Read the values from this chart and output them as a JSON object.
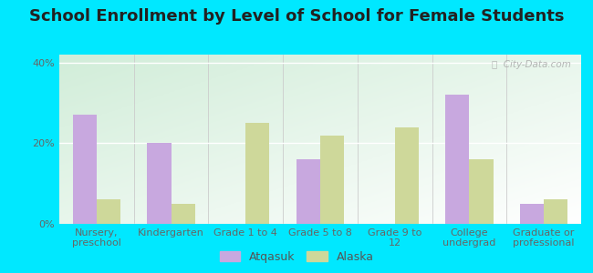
{
  "title": "School Enrollment by Level of School for Female Students",
  "categories": [
    "Nursery,\npreschool",
    "Kindergarten",
    "Grade 1 to 4",
    "Grade 5 to 8",
    "Grade 9 to\n12",
    "College\nundergrad",
    "Graduate or\nprofessional"
  ],
  "atqasuk": [
    27,
    20,
    0,
    16,
    0,
    32,
    5
  ],
  "alaska": [
    6,
    5,
    25,
    22,
    24,
    16,
    6
  ],
  "atqasuk_color": "#c8a8df",
  "alaska_color": "#ced89a",
  "background_outer": "#00e8ff",
  "background_inner_top": "#d0ecd8",
  "background_inner_bottom": "#eef8ee",
  "ylim": [
    0,
    42
  ],
  "yticks": [
    0,
    20,
    40
  ],
  "ytick_labels": [
    "0%",
    "20%",
    "40%"
  ],
  "bar_width": 0.32,
  "title_fontsize": 13,
  "tick_fontsize": 8,
  "legend_fontsize": 9,
  "watermark": "ⓘ  City-Data.com"
}
